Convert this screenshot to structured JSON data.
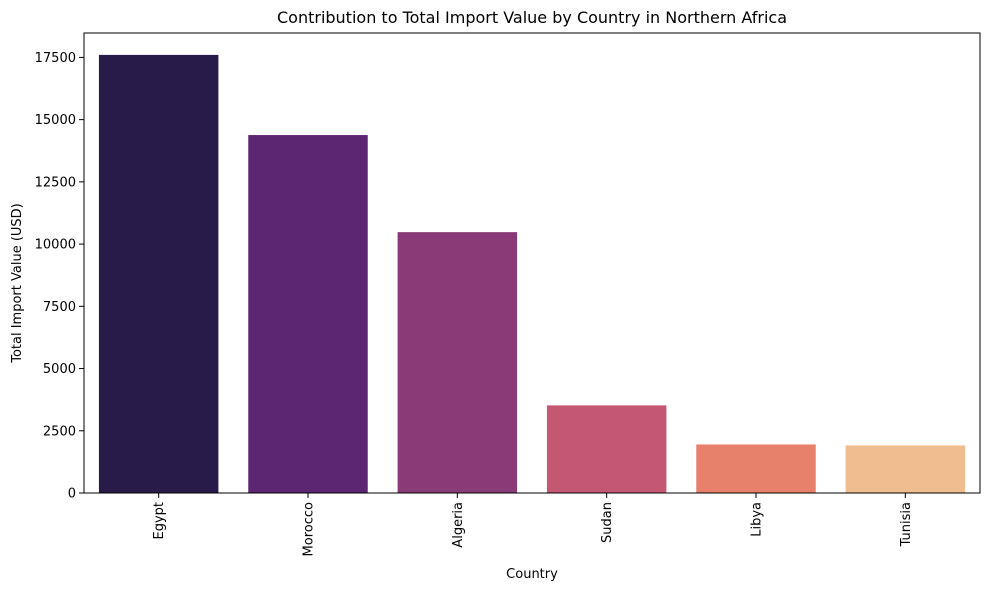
{
  "chart_data": {
    "type": "bar",
    "title": "Contribution to Total Import Value by Country in Northern Africa",
    "xlabel": "Country",
    "ylabel": "Total Import Value (USD)",
    "categories": [
      "Egypt",
      "Morocco",
      "Algeria",
      "Sudan",
      "Libya",
      "Tunisia"
    ],
    "values": [
      17600,
      14380,
      10480,
      3520,
      1950,
      1910
    ],
    "colors": [
      "#281b49",
      "#5c2672",
      "#8a3b77",
      "#c45873",
      "#e8816c",
      "#efbd8e"
    ],
    "ylim": [
      0,
      18480
    ],
    "yticks": [
      0,
      2500,
      5000,
      7500,
      10000,
      12500,
      15000,
      17500
    ],
    "ytick_labels": [
      "0",
      "2500",
      "5000",
      "7500",
      "10000",
      "12500",
      "15000",
      "17500"
    ],
    "grid": false,
    "legend": "none"
  }
}
